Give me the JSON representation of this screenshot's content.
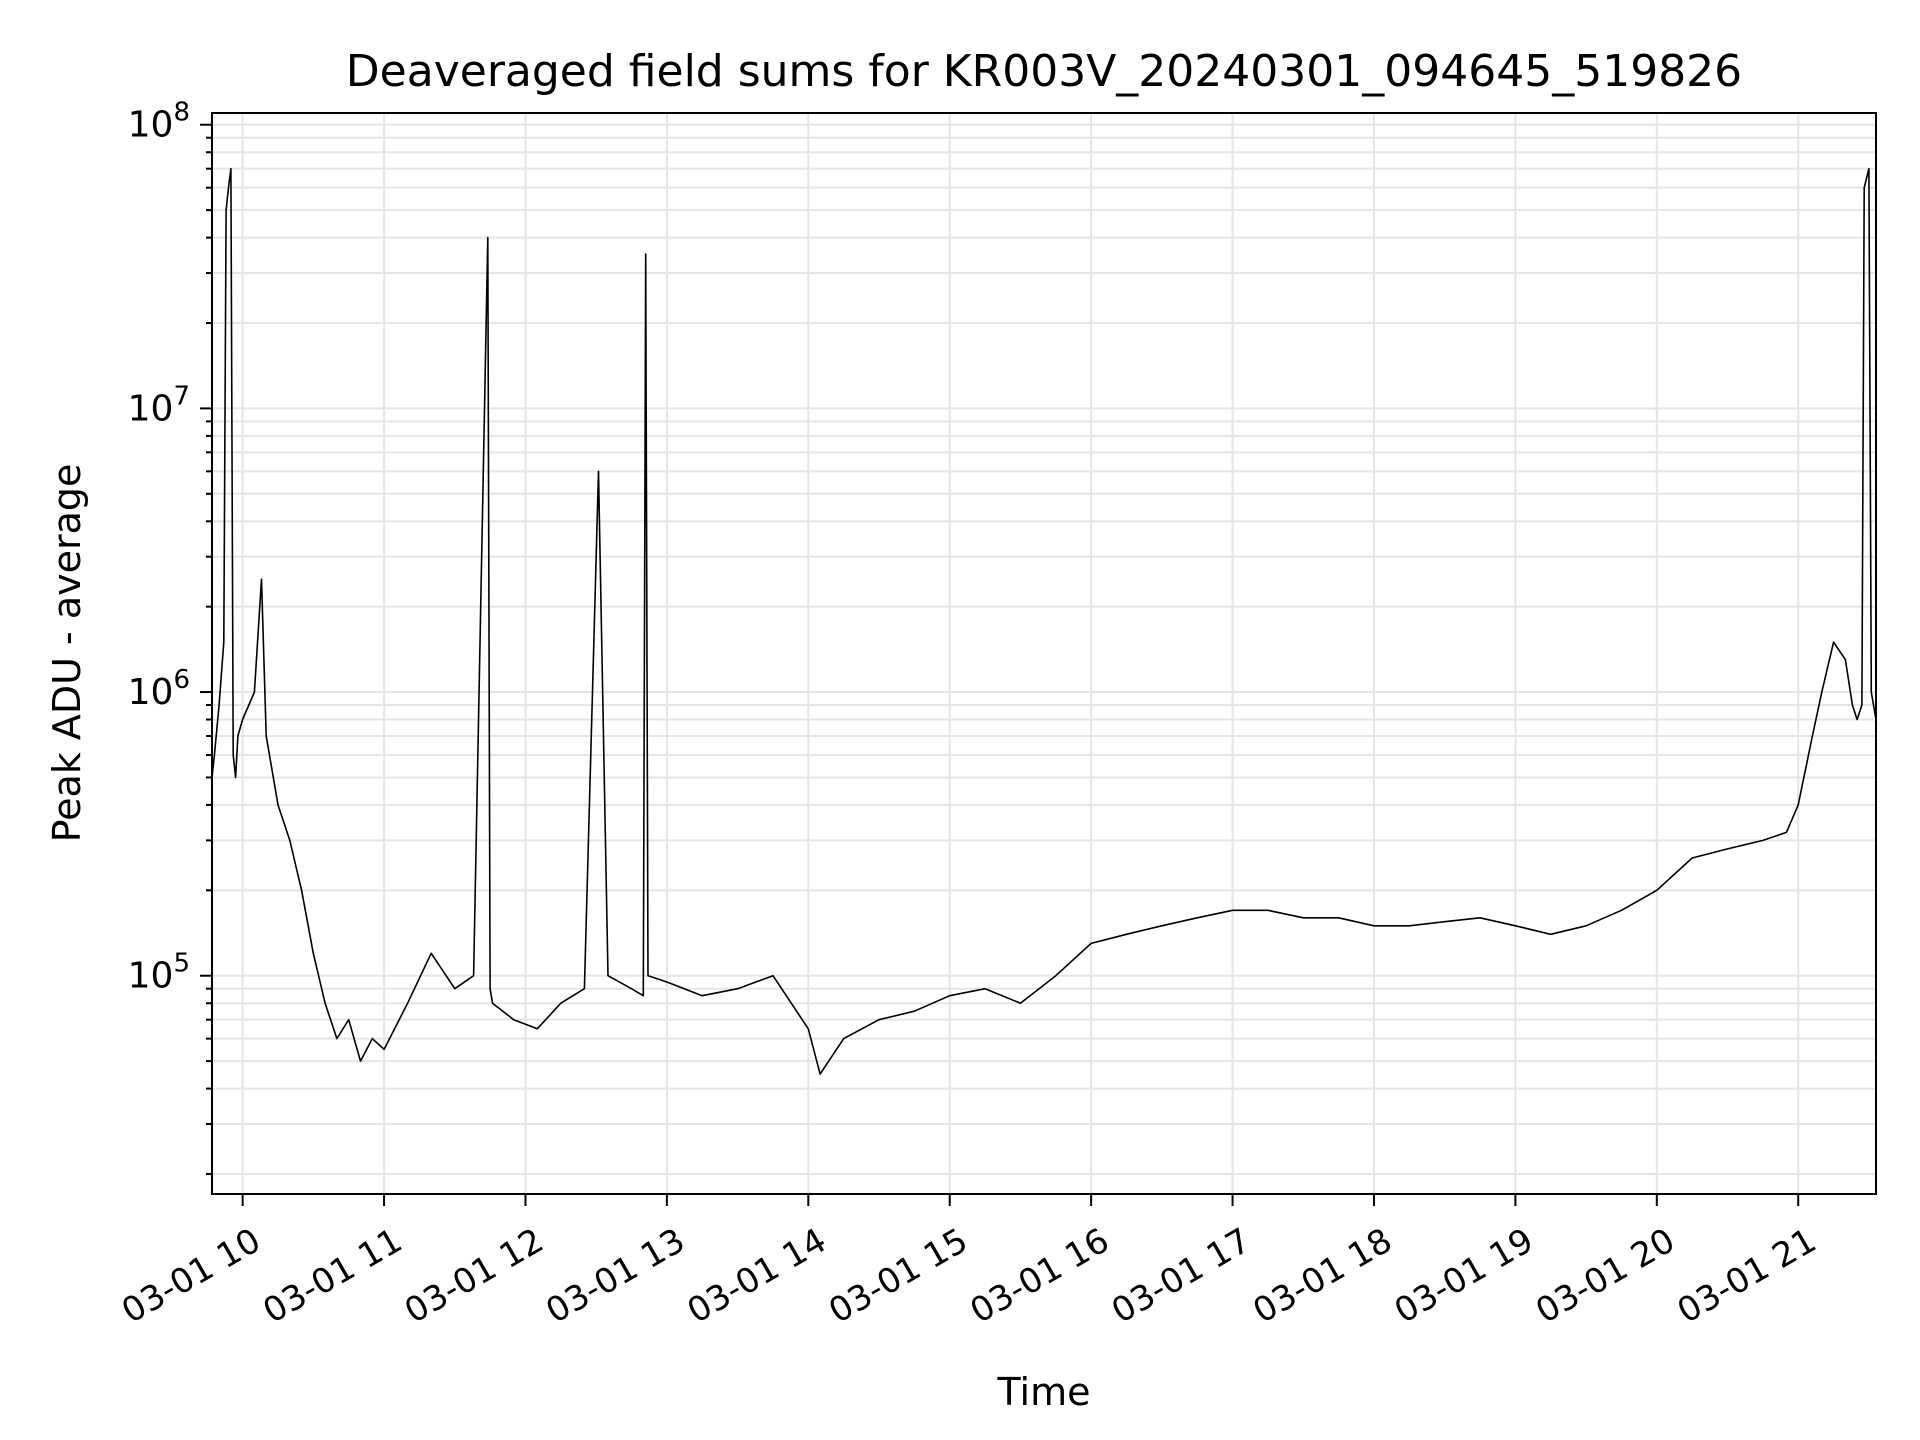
{
  "chart_data": {
    "type": "line",
    "title": "Deaveraged field sums for KR003V_20240301_094645_519826",
    "xlabel": "Time",
    "ylabel": "Peak ADU - average",
    "yscale": "log",
    "ylim": [
      17000,
      110000000
    ],
    "xlim": [
      "2024-03-01 09:47:00",
      "2024-03-01 21:33:00"
    ],
    "x_ticks": [
      {
        "value": "2024-03-01 10:00",
        "label": "03-01 10"
      },
      {
        "value": "2024-03-01 11:00",
        "label": "03-01 11"
      },
      {
        "value": "2024-03-01 12:00",
        "label": "03-01 12"
      },
      {
        "value": "2024-03-01 13:00",
        "label": "03-01 13"
      },
      {
        "value": "2024-03-01 14:00",
        "label": "03-01 14"
      },
      {
        "value": "2024-03-01 15:00",
        "label": "03-01 15"
      },
      {
        "value": "2024-03-01 16:00",
        "label": "03-01 16"
      },
      {
        "value": "2024-03-01 17:00",
        "label": "03-01 17"
      },
      {
        "value": "2024-03-01 18:00",
        "label": "03-01 18"
      },
      {
        "value": "2024-03-01 19:00",
        "label": "03-01 19"
      },
      {
        "value": "2024-03-01 20:00",
        "label": "03-01 20"
      },
      {
        "value": "2024-03-01 21:00",
        "label": "03-01 21"
      }
    ],
    "y_ticks": [
      {
        "value": 100000,
        "base": "10",
        "exp": "5"
      },
      {
        "value": 1000000,
        "base": "10",
        "exp": "6"
      },
      {
        "value": 10000000,
        "base": "10",
        "exp": "7"
      },
      {
        "value": 100000000,
        "base": "10",
        "exp": "8"
      }
    ],
    "grid": true,
    "line_color": "#000000",
    "grid_color": "#e5e5e5",
    "series": [
      {
        "x": [
          "2024-03-01 09:47",
          "2024-03-01 09:48",
          "2024-03-01 09:50",
          "2024-03-01 09:52",
          "2024-03-01 09:53",
          "2024-03-01 09:54",
          "2024-03-01 09:55",
          "2024-03-01 09:56",
          "2024-03-01 09:57",
          "2024-03-01 09:58",
          "2024-03-01 10:00",
          "2024-03-01 10:05",
          "2024-03-01 10:08",
          "2024-03-01 10:10",
          "2024-03-01 10:13",
          "2024-03-01 10:15",
          "2024-03-01 10:20",
          "2024-03-01 10:25",
          "2024-03-01 10:30",
          "2024-03-01 10:35",
          "2024-03-01 10:40",
          "2024-03-01 10:45",
          "2024-03-01 10:50",
          "2024-03-01 10:55",
          "2024-03-01 11:00",
          "2024-03-01 11:10",
          "2024-03-01 11:20",
          "2024-03-01 11:30",
          "2024-03-01 11:38",
          "2024-03-01 11:44",
          "2024-03-01 11:45",
          "2024-03-01 11:46",
          "2024-03-01 11:55",
          "2024-03-01 12:05",
          "2024-03-01 12:15",
          "2024-03-01 12:25",
          "2024-03-01 12:31",
          "2024-03-01 12:35",
          "2024-03-01 12:45",
          "2024-03-01 12:50",
          "2024-03-01 12:51",
          "2024-03-01 12:52",
          "2024-03-01 13:00",
          "2024-03-01 13:15",
          "2024-03-01 13:30",
          "2024-03-01 13:45",
          "2024-03-01 14:00",
          "2024-03-01 14:05",
          "2024-03-01 14:15",
          "2024-03-01 14:30",
          "2024-03-01 14:45",
          "2024-03-01 15:00",
          "2024-03-01 15:15",
          "2024-03-01 15:30",
          "2024-03-01 15:45",
          "2024-03-01 16:00",
          "2024-03-01 16:15",
          "2024-03-01 16:30",
          "2024-03-01 16:45",
          "2024-03-01 17:00",
          "2024-03-01 17:15",
          "2024-03-01 17:30",
          "2024-03-01 17:45",
          "2024-03-01 18:00",
          "2024-03-01 18:15",
          "2024-03-01 18:30",
          "2024-03-01 18:45",
          "2024-03-01 19:00",
          "2024-03-01 19:15",
          "2024-03-01 19:30",
          "2024-03-01 19:45",
          "2024-03-01 20:00",
          "2024-03-01 20:15",
          "2024-03-01 20:30",
          "2024-03-01 20:45",
          "2024-03-01 20:55",
          "2024-03-01 21:00",
          "2024-03-01 21:06",
          "2024-03-01 21:10",
          "2024-03-01 21:15",
          "2024-03-01 21:20",
          "2024-03-01 21:23",
          "2024-03-01 21:25",
          "2024-03-01 21:27",
          "2024-03-01 21:28",
          "2024-03-01 21:30",
          "2024-03-01 21:31",
          "2024-03-01 21:33"
        ],
        "values": [
          500000,
          600000,
          900000,
          1500000,
          50000000,
          60000000,
          70000000,
          600000,
          500000,
          700000,
          800000,
          1000000,
          2500000,
          700000,
          500000,
          400000,
          300000,
          200000,
          120000,
          80000,
          60000,
          70000,
          50000,
          60000,
          55000,
          80000,
          120000,
          90000,
          100000,
          40000000,
          90000,
          80000,
          70000,
          65000,
          80000,
          90000,
          6000000,
          100000,
          90000,
          85000,
          35000000,
          100000,
          95000,
          85000,
          90000,
          100000,
          65000,
          45000,
          60000,
          70000,
          75000,
          85000,
          90000,
          80000,
          100000,
          130000,
          140000,
          150000,
          160000,
          170000,
          170000,
          160000,
          160000,
          150000,
          150000,
          155000,
          160000,
          150000,
          140000,
          150000,
          170000,
          200000,
          260000,
          280000,
          300000,
          320000,
          400000,
          700000,
          1000000,
          1500000,
          1300000,
          900000,
          800000,
          900000,
          60000000,
          70000000,
          1000000,
          800000
        ]
      }
    ]
  }
}
